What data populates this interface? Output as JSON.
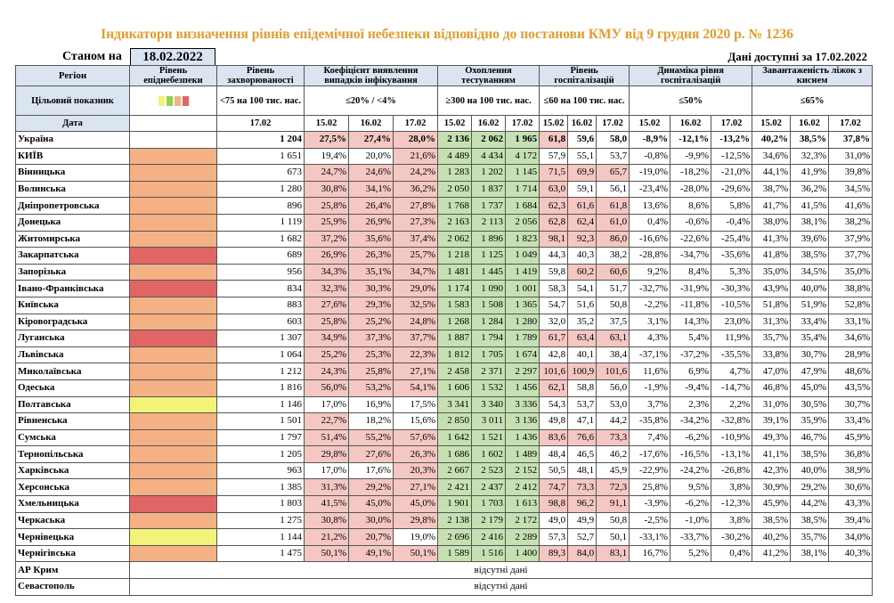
{
  "title": "Індикатори визначення рівнів епідемічної небезпеки відповідно до постанови КМУ від 9 грудня 2020 р. № 1236",
  "as_of_label": "Станом на",
  "as_of_date": "18.02.2022",
  "data_available": "Дані доступні за 17.02.2022",
  "headers": {
    "region": "Регіон",
    "level": "Рівень епіднебезпеки",
    "incidence": "Рівень захворюваності",
    "detection": "Коефіцієнт виявлення випадків інфікування",
    "testing": "Охоплення тестуванням",
    "hosp": "Рівень госпіталізацій",
    "dyn": "Динаміка рівня госпіталізацій",
    "oxygen": "Завантаженість ліжок з киснем"
  },
  "target": {
    "label": "Цільовий показник",
    "incidence": "<75 на 100 тис. нас.",
    "detection": "≤20% / <4%",
    "testing": "≥300 на 100 тис. нас.",
    "hosp": "≤60 на 100 тис. нас.",
    "dyn": "≤50%",
    "oxygen": "≤65%"
  },
  "legend_colors": [
    "#f3f37a",
    "#92d050",
    "#f4b183",
    "#e06666"
  ],
  "date_row": {
    "label": "Дата",
    "incidence": "17.02",
    "d1": "15.02",
    "d2": "16.02",
    "d3": "17.02"
  },
  "rows": [
    {
      "name": "Україна",
      "level": "",
      "inc": "1 204",
      "det": [
        "27,5%",
        "27,4%",
        "28,0%"
      ],
      "test": [
        "2 136",
        "2 062",
        "1 965"
      ],
      "hosp": [
        "61,8",
        "59,6",
        "58,0"
      ],
      "dyn": [
        "-8,9%",
        "-12,1%",
        "-13,2%"
      ],
      "oxy": [
        "40,2%",
        "38,5%",
        "37,8%"
      ],
      "bold": true
    },
    {
      "name": "КИЇВ",
      "level": "orange",
      "inc": "1 651",
      "det": [
        "19,4%",
        "20,0%",
        "21,6%"
      ],
      "test": [
        "4 489",
        "4 434",
        "4 172"
      ],
      "hosp": [
        "57,9",
        "55,1",
        "53,7"
      ],
      "dyn": [
        "-0,8%",
        "-9,9%",
        "-12,5%"
      ],
      "oxy": [
        "34,6%",
        "32,3%",
        "31,0%"
      ]
    },
    {
      "name": "Вінницька",
      "level": "orange",
      "inc": "673",
      "det": [
        "24,7%",
        "24,6%",
        "24,2%"
      ],
      "test": [
        "1 283",
        "1 202",
        "1 145"
      ],
      "hosp": [
        "71,5",
        "69,9",
        "65,7"
      ],
      "dyn": [
        "-19,0%",
        "-18,2%",
        "-21,0%"
      ],
      "oxy": [
        "44,1%",
        "41,9%",
        "39,8%"
      ]
    },
    {
      "name": "Волинська",
      "level": "orange",
      "inc": "1 280",
      "det": [
        "30,8%",
        "34,1%",
        "36,2%"
      ],
      "test": [
        "2 050",
        "1 837",
        "1 714"
      ],
      "hosp": [
        "63,0",
        "59,1",
        "56,1"
      ],
      "dyn": [
        "-23,4%",
        "-28,0%",
        "-29,6%"
      ],
      "oxy": [
        "38,7%",
        "36,2%",
        "34,5%"
      ]
    },
    {
      "name": "Дніпропетровська",
      "level": "orange",
      "inc": "896",
      "det": [
        "25,8%",
        "26,4%",
        "27,8%"
      ],
      "test": [
        "1 768",
        "1 737",
        "1 684"
      ],
      "hosp": [
        "62,3",
        "61,6",
        "61,8"
      ],
      "dyn": [
        "13,6%",
        "8,6%",
        "5,8%"
      ],
      "oxy": [
        "41,7%",
        "41,5%",
        "41,6%"
      ]
    },
    {
      "name": "Донецька",
      "level": "orange",
      "inc": "1 119",
      "det": [
        "25,9%",
        "26,9%",
        "27,3%"
      ],
      "test": [
        "2 163",
        "2 113",
        "2 056"
      ],
      "hosp": [
        "62,8",
        "62,4",
        "61,0"
      ],
      "dyn": [
        "0,4%",
        "-0,6%",
        "-0,4%"
      ],
      "oxy": [
        "38,0%",
        "38,1%",
        "38,2%"
      ]
    },
    {
      "name": "Житомирська",
      "level": "orange",
      "inc": "1 682",
      "det": [
        "37,2%",
        "35,6%",
        "37,4%"
      ],
      "test": [
        "2 062",
        "1 896",
        "1 823"
      ],
      "hosp": [
        "98,1",
        "92,3",
        "86,0"
      ],
      "dyn": [
        "-16,6%",
        "-22,6%",
        "-25,4%"
      ],
      "oxy": [
        "41,3%",
        "39,6%",
        "37,9%"
      ]
    },
    {
      "name": "Закарпатська",
      "level": "red",
      "inc": "689",
      "det": [
        "26,9%",
        "26,3%",
        "25,7%"
      ],
      "test": [
        "1 218",
        "1 125",
        "1 049"
      ],
      "hosp": [
        "44,3",
        "40,3",
        "38,2"
      ],
      "dyn": [
        "-28,8%",
        "-34,7%",
        "-35,6%"
      ],
      "oxy": [
        "41,8%",
        "38,5%",
        "37,7%"
      ]
    },
    {
      "name": "Запорізька",
      "level": "orange",
      "inc": "956",
      "det": [
        "34,3%",
        "35,1%",
        "34,7%"
      ],
      "test": [
        "1 481",
        "1 445",
        "1 419"
      ],
      "hosp": [
        "59,8",
        "60,2",
        "60,6"
      ],
      "dyn": [
        "9,2%",
        "8,4%",
        "5,3%"
      ],
      "oxy": [
        "35,0%",
        "34,5%",
        "35,0%"
      ]
    },
    {
      "name": "Івано-Франківська",
      "level": "red",
      "inc": "834",
      "det": [
        "32,3%",
        "30,3%",
        "29,0%"
      ],
      "test": [
        "1 174",
        "1 090",
        "1 001"
      ],
      "hosp": [
        "58,3",
        "54,1",
        "51,7"
      ],
      "dyn": [
        "-32,7%",
        "-31,9%",
        "-30,3%"
      ],
      "oxy": [
        "43,9%",
        "40,0%",
        "38,8%"
      ]
    },
    {
      "name": "Київська",
      "level": "orange",
      "inc": "883",
      "det": [
        "27,6%",
        "29,3%",
        "32,5%"
      ],
      "test": [
        "1 583",
        "1 508",
        "1 365"
      ],
      "hosp": [
        "54,7",
        "51,6",
        "50,8"
      ],
      "dyn": [
        "-2,2%",
        "-11,8%",
        "-10,5%"
      ],
      "oxy": [
        "51,8%",
        "51,9%",
        "52,8%"
      ]
    },
    {
      "name": "Кіровоградська",
      "level": "orange",
      "inc": "603",
      "det": [
        "25,8%",
        "25,2%",
        "24,8%"
      ],
      "test": [
        "1 268",
        "1 284",
        "1 280"
      ],
      "hosp": [
        "32,0",
        "35,2",
        "37,5"
      ],
      "dyn": [
        "3,1%",
        "14,3%",
        "23,0%"
      ],
      "oxy": [
        "31,3%",
        "33,4%",
        "33,1%"
      ]
    },
    {
      "name": "Луганська",
      "level": "red",
      "inc": "1 307",
      "det": [
        "34,9%",
        "37,3%",
        "37,7%"
      ],
      "test": [
        "1 887",
        "1 794",
        "1 789"
      ],
      "hosp": [
        "61,7",
        "63,4",
        "63,1"
      ],
      "dyn": [
        "4,3%",
        "5,4%",
        "11,9%"
      ],
      "oxy": [
        "35,7%",
        "35,4%",
        "34,6%"
      ]
    },
    {
      "name": "Львівська",
      "level": "orange",
      "inc": "1 064",
      "det": [
        "25,2%",
        "25,3%",
        "22,3%"
      ],
      "test": [
        "1 812",
        "1 705",
        "1 674"
      ],
      "hosp": [
        "42,8",
        "40,1",
        "38,4"
      ],
      "dyn": [
        "-37,1%",
        "-37,2%",
        "-35,5%"
      ],
      "oxy": [
        "33,8%",
        "30,7%",
        "28,9%"
      ]
    },
    {
      "name": "Миколаївська",
      "level": "orange",
      "inc": "1 212",
      "det": [
        "24,3%",
        "25,8%",
        "27,1%"
      ],
      "test": [
        "2 458",
        "2 371",
        "2 297"
      ],
      "hosp": [
        "101,6",
        "100,9",
        "101,6"
      ],
      "dyn": [
        "11,6%",
        "6,9%",
        "4,7%"
      ],
      "oxy": [
        "47,0%",
        "47,9%",
        "48,6%"
      ]
    },
    {
      "name": "Одеська",
      "level": "orange",
      "inc": "1 816",
      "det": [
        "56,0%",
        "53,2%",
        "54,1%"
      ],
      "test": [
        "1 606",
        "1 532",
        "1 456"
      ],
      "hosp": [
        "62,1",
        "58,8",
        "56,0"
      ],
      "dyn": [
        "-1,9%",
        "-9,4%",
        "-14,7%"
      ],
      "oxy": [
        "46,8%",
        "45,0%",
        "43,5%"
      ]
    },
    {
      "name": "Полтавська",
      "level": "yellow",
      "inc": "1 146",
      "det": [
        "17,0%",
        "16,9%",
        "17,5%"
      ],
      "test": [
        "3 341",
        "3 340",
        "3 336"
      ],
      "hosp": [
        "54,3",
        "53,7",
        "53,0"
      ],
      "dyn": [
        "3,7%",
        "2,3%",
        "2,2%"
      ],
      "oxy": [
        "31,0%",
        "30,5%",
        "30,7%"
      ]
    },
    {
      "name": "Рівненська",
      "level": "orange",
      "inc": "1 501",
      "det": [
        "22,7%",
        "18,2%",
        "15,6%"
      ],
      "test": [
        "2 850",
        "3 011",
        "3 136"
      ],
      "hosp": [
        "49,8",
        "47,1",
        "44,2"
      ],
      "dyn": [
        "-35,8%",
        "-34,2%",
        "-32,8%"
      ],
      "oxy": [
        "39,1%",
        "35,9%",
        "33,4%"
      ]
    },
    {
      "name": "Сумська",
      "level": "orange",
      "inc": "1 797",
      "det": [
        "51,4%",
        "55,2%",
        "57,6%"
      ],
      "test": [
        "1 642",
        "1 521",
        "1 436"
      ],
      "hosp": [
        "83,6",
        "76,6",
        "73,3"
      ],
      "dyn": [
        "7,4%",
        "-6,2%",
        "-10,9%"
      ],
      "oxy": [
        "49,3%",
        "46,7%",
        "45,9%"
      ]
    },
    {
      "name": "Тернопільська",
      "level": "orange",
      "inc": "1 205",
      "det": [
        "29,8%",
        "27,6%",
        "26,3%"
      ],
      "test": [
        "1 686",
        "1 602",
        "1 489"
      ],
      "hosp": [
        "48,4",
        "46,5",
        "46,2"
      ],
      "dyn": [
        "-17,6%",
        "-16,5%",
        "-13,1%"
      ],
      "oxy": [
        "41,1%",
        "38,5%",
        "36,8%"
      ]
    },
    {
      "name": "Харківська",
      "level": "orange",
      "inc": "963",
      "det": [
        "17,0%",
        "17,6%",
        "20,3%"
      ],
      "test": [
        "2 667",
        "2 523",
        "2 152"
      ],
      "hosp": [
        "50,5",
        "48,1",
        "45,9"
      ],
      "dyn": [
        "-22,9%",
        "-24,2%",
        "-26,8%"
      ],
      "oxy": [
        "42,3%",
        "40,0%",
        "38,9%"
      ]
    },
    {
      "name": "Херсонська",
      "level": "orange",
      "inc": "1 385",
      "det": [
        "31,3%",
        "29,2%",
        "27,1%"
      ],
      "test": [
        "2 421",
        "2 437",
        "2 412"
      ],
      "hosp": [
        "74,7",
        "73,3",
        "72,3"
      ],
      "dyn": [
        "25,8%",
        "9,5%",
        "3,8%"
      ],
      "oxy": [
        "30,9%",
        "29,2%",
        "30,6%"
      ]
    },
    {
      "name": "Хмельницька",
      "level": "red",
      "inc": "1 803",
      "det": [
        "41,5%",
        "45,0%",
        "45,0%"
      ],
      "test": [
        "1 901",
        "1 703",
        "1 613"
      ],
      "hosp": [
        "98,8",
        "96,2",
        "91,1"
      ],
      "dyn": [
        "-3,9%",
        "-6,2%",
        "-12,3%"
      ],
      "oxy": [
        "45,9%",
        "44,2%",
        "43,3%"
      ]
    },
    {
      "name": "Черкаська",
      "level": "orange",
      "inc": "1 275",
      "det": [
        "30,8%",
        "30,0%",
        "29,8%"
      ],
      "test": [
        "2 138",
        "2 179",
        "2 172"
      ],
      "hosp": [
        "49,0",
        "49,9",
        "50,8"
      ],
      "dyn": [
        "-2,5%",
        "-1,0%",
        "3,8%"
      ],
      "oxy": [
        "38,5%",
        "38,5%",
        "39,4%"
      ]
    },
    {
      "name": "Чернівецька",
      "level": "yellow",
      "inc": "1 144",
      "det": [
        "21,2%",
        "20,7%",
        "19,0%"
      ],
      "test": [
        "2 696",
        "2 416",
        "2 289"
      ],
      "hosp": [
        "57,3",
        "52,7",
        "50,1"
      ],
      "dyn": [
        "-33,1%",
        "-33,7%",
        "-30,2%"
      ],
      "oxy": [
        "40,2%",
        "35,7%",
        "34,0%"
      ]
    },
    {
      "name": "Чернігівська",
      "level": "orange",
      "inc": "1 475",
      "det": [
        "50,1%",
        "49,1%",
        "50,1%"
      ],
      "test": [
        "1 589",
        "1 516",
        "1 400"
      ],
      "hosp": [
        "89,3",
        "84,0",
        "83,1"
      ],
      "dyn": [
        "16,7%",
        "5,2%",
        "0,4%"
      ],
      "oxy": [
        "41,2%",
        "38,1%",
        "40,3%"
      ]
    }
  ],
  "absent_rows": [
    {
      "name": "АР Крим",
      "text": "відсутні дані"
    },
    {
      "name": "Севастополь",
      "text": "відсутні дані"
    }
  ]
}
